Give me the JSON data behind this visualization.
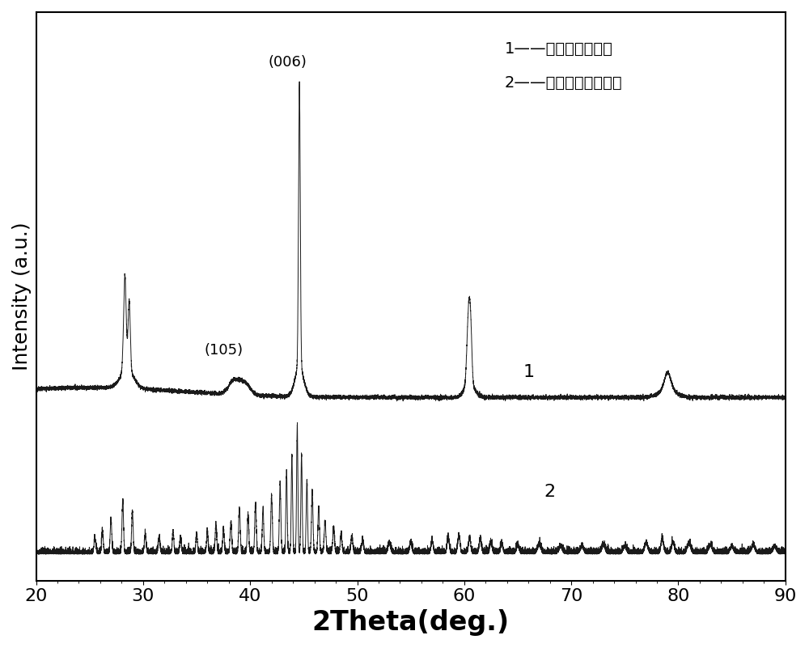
{
  "xlim": [
    20,
    90
  ],
  "xlabel": "2Theta(deg.)",
  "ylabel": "Intensity (a.u.)",
  "xlabel_fontsize": 24,
  "ylabel_fontsize": 18,
  "tick_fontsize": 16,
  "line_color": "#1a1a1a",
  "background_color": "#ffffff",
  "legend_text1": "1——取向后的衍射峰",
  "legend_text2": "2——再生磁粉的衍射峰",
  "annotation_006": "(006)",
  "annotation_105": "(105)",
  "label1": "1",
  "label2": "2",
  "curve1_baseline": 0.5,
  "curve2_baseline": 0.0,
  "ylim_min": -0.08,
  "ylim_max": 1.72
}
